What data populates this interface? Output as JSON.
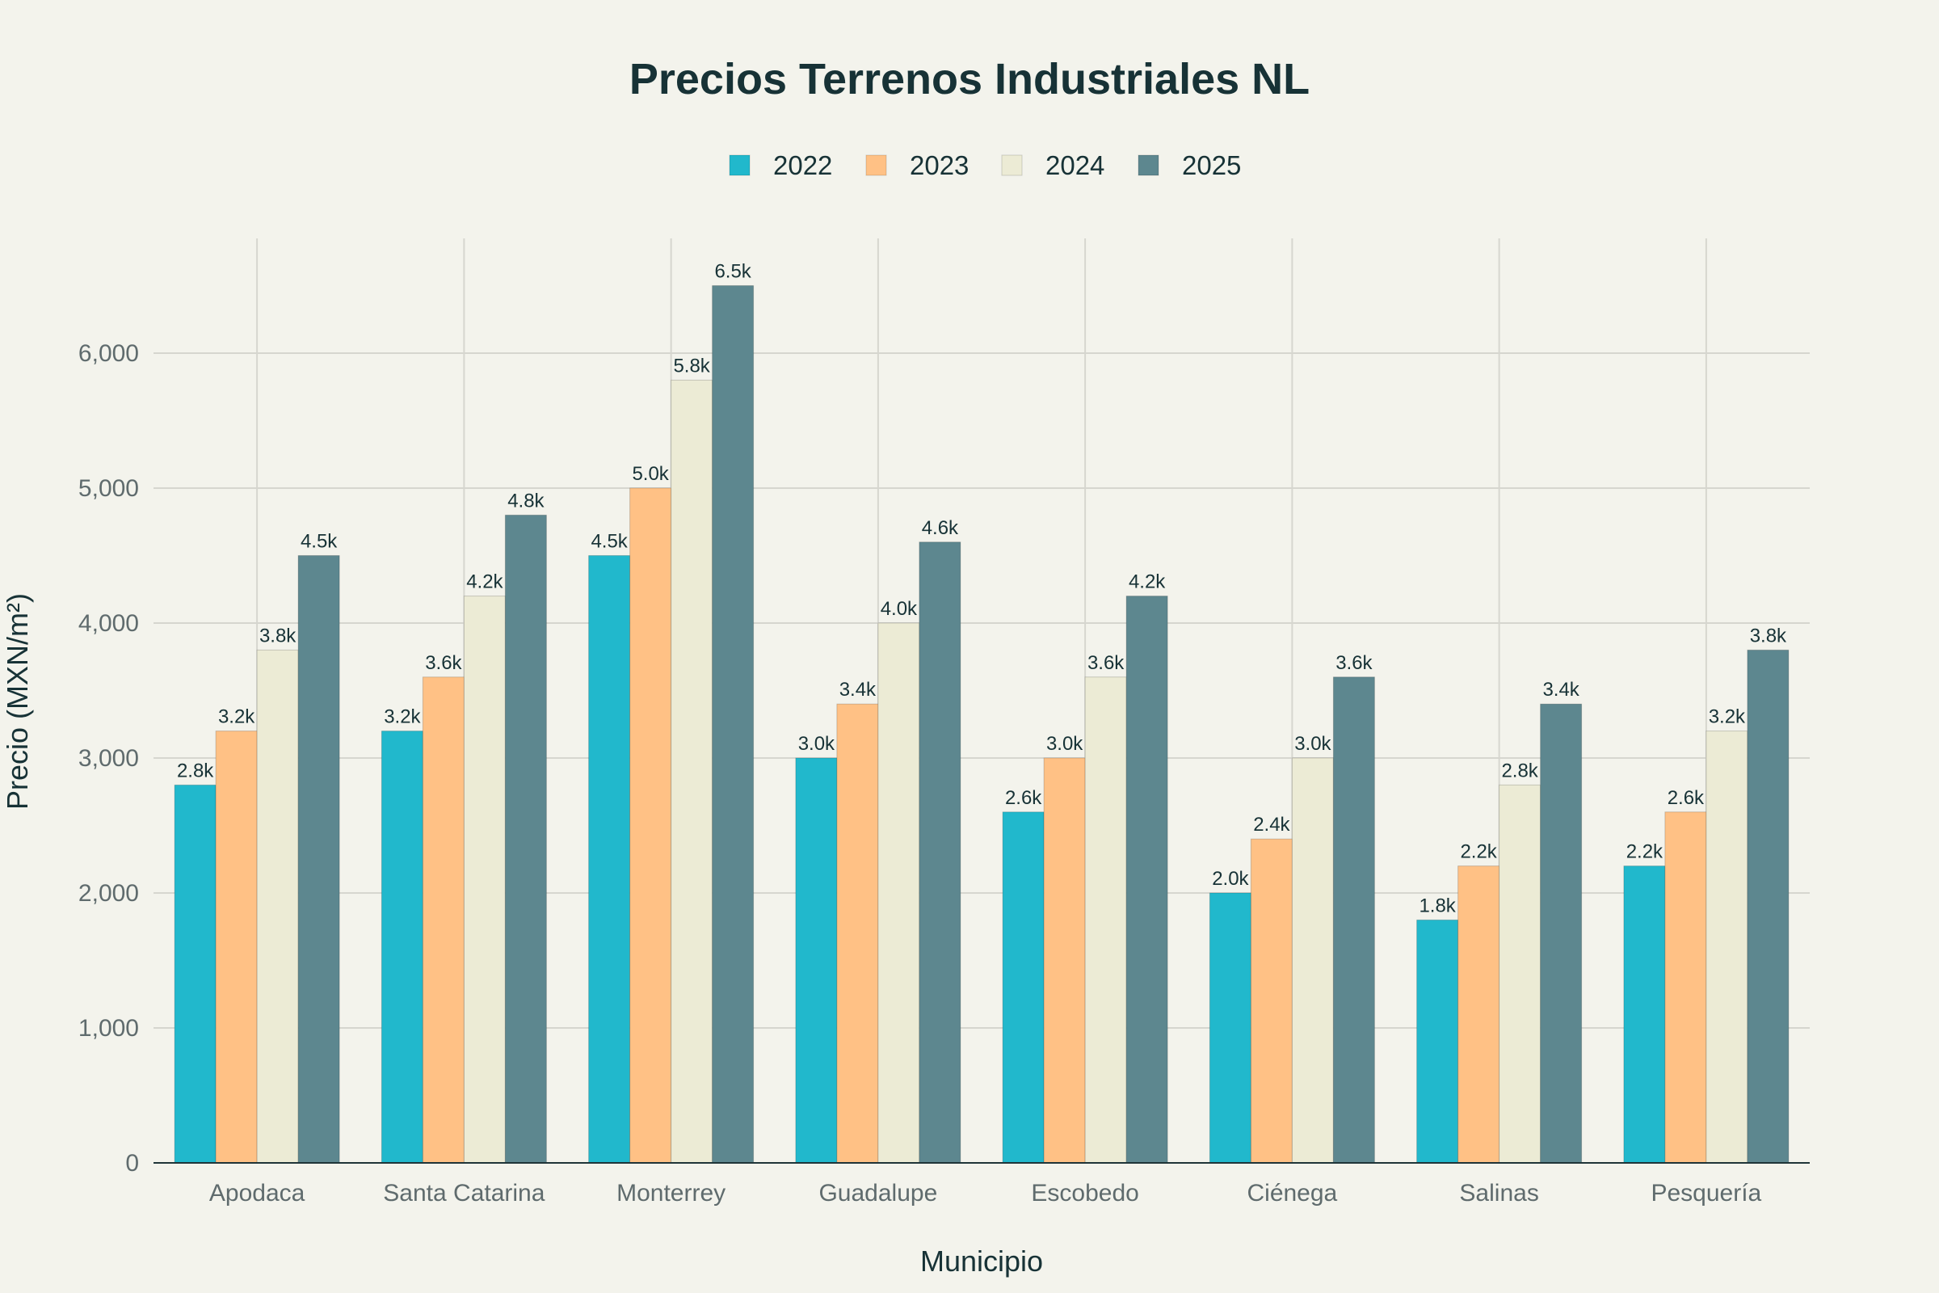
{
  "chart_data": {
    "type": "bar",
    "title": "Precios Terrenos Industriales NL",
    "xlabel": "Municipio",
    "ylabel": "Precio (MXN/m²)",
    "ylim": [
      0,
      6850
    ],
    "yticks": [
      0,
      1000,
      2000,
      3000,
      4000,
      5000,
      6000
    ],
    "ytick_labels": [
      "0",
      "1,000",
      "2,000",
      "3,000",
      "4,000",
      "5,000",
      "6,000"
    ],
    "grid": true,
    "legend_position": "top-center",
    "categories": [
      "Apodaca",
      "Santa Catarina",
      "Monterrey",
      "Guadalupe",
      "Escobedo",
      "Ciénega",
      "Salinas",
      "Pesquería"
    ],
    "series": [
      {
        "name": "2022",
        "color": "#21b8cc",
        "values": [
          2800,
          3200,
          4500,
          3000,
          2600,
          2000,
          1800,
          2200
        ],
        "labels": [
          "2.8k",
          "3.2k",
          "4.5k",
          "3.0k",
          "2.6k",
          "2.0k",
          "1.8k",
          "2.2k"
        ]
      },
      {
        "name": "2023",
        "color": "#ffc185",
        "values": [
          3200,
          3600,
          5000,
          3400,
          3000,
          2400,
          2200,
          2600
        ],
        "labels": [
          "3.2k",
          "3.6k",
          "5.0k",
          "3.4k",
          "3.0k",
          "2.4k",
          "2.2k",
          "2.6k"
        ]
      },
      {
        "name": "2024",
        "color": "#ecebd5",
        "values": [
          3800,
          4200,
          5800,
          4000,
          3600,
          3000,
          2800,
          3200
        ],
        "labels": [
          "3.8k",
          "4.2k",
          "5.8k",
          "4.0k",
          "3.6k",
          "3.0k",
          "2.8k",
          "3.2k"
        ]
      },
      {
        "name": "2025",
        "color": "#5d878f",
        "values": [
          4500,
          4800,
          6500,
          4600,
          4200,
          3600,
          3400,
          3800
        ],
        "labels": [
          "4.5k",
          "4.8k",
          "6.5k",
          "4.6k",
          "4.2k",
          "3.6k",
          "3.4k",
          "3.8k"
        ]
      }
    ]
  }
}
